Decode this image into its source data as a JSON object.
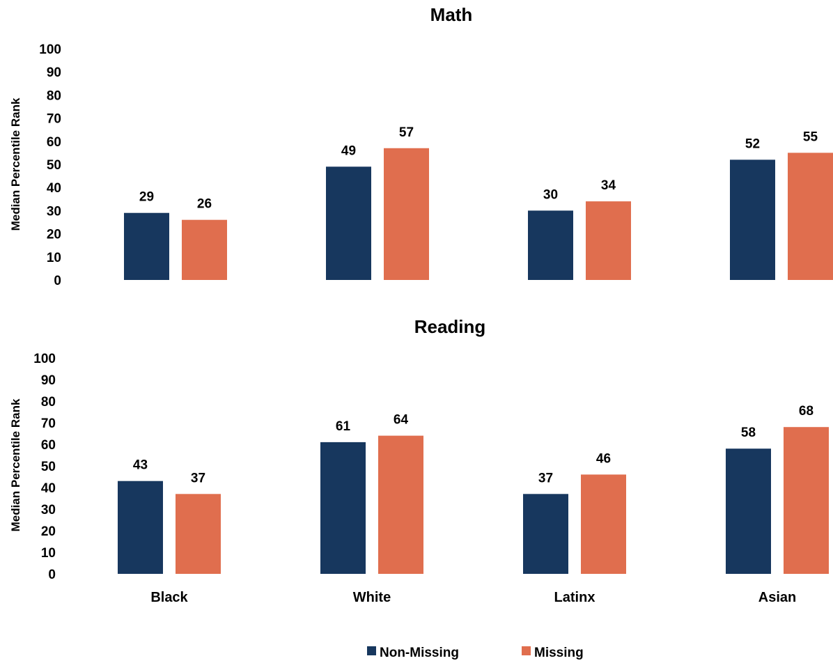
{
  "chart_data": [
    {
      "type": "bar",
      "title": "Math",
      "ylabel": "Median Percentile Rank",
      "ylim": [
        0,
        100
      ],
      "yticks": [
        "0",
        "10",
        "20",
        "30",
        "40",
        "50",
        "60",
        "70",
        "80",
        "90",
        "100"
      ],
      "categories": [
        "Black",
        "White",
        "Latinx",
        "Asian"
      ],
      "series": [
        {
          "name": "Non-Missing",
          "values": [
            29,
            49,
            30,
            52
          ],
          "color": "#17375e"
        },
        {
          "name": "Missing",
          "values": [
            26,
            57,
            34,
            55
          ],
          "color": "#e06e4e"
        }
      ],
      "show_category_labels": false,
      "grid": false
    },
    {
      "type": "bar",
      "title": "Reading",
      "ylabel": "Median Percentile Rank",
      "ylim": [
        0,
        100
      ],
      "yticks": [
        "0",
        "10",
        "20",
        "30",
        "40",
        "50",
        "60",
        "70",
        "80",
        "90",
        "100"
      ],
      "categories": [
        "Black",
        "White",
        "Latinx",
        "Asian"
      ],
      "series": [
        {
          "name": "Non-Missing",
          "values": [
            43,
            61,
            37,
            58
          ],
          "color": "#17375e"
        },
        {
          "name": "Missing",
          "values": [
            37,
            64,
            46,
            68
          ],
          "color": "#e06e4e"
        }
      ],
      "show_category_labels": true,
      "grid": false
    }
  ],
  "legend": {
    "placement": "bottom",
    "items": [
      {
        "label": "Non-Missing",
        "color": "#17375e"
      },
      {
        "label": "Missing",
        "color": "#e06e4e"
      }
    ]
  }
}
